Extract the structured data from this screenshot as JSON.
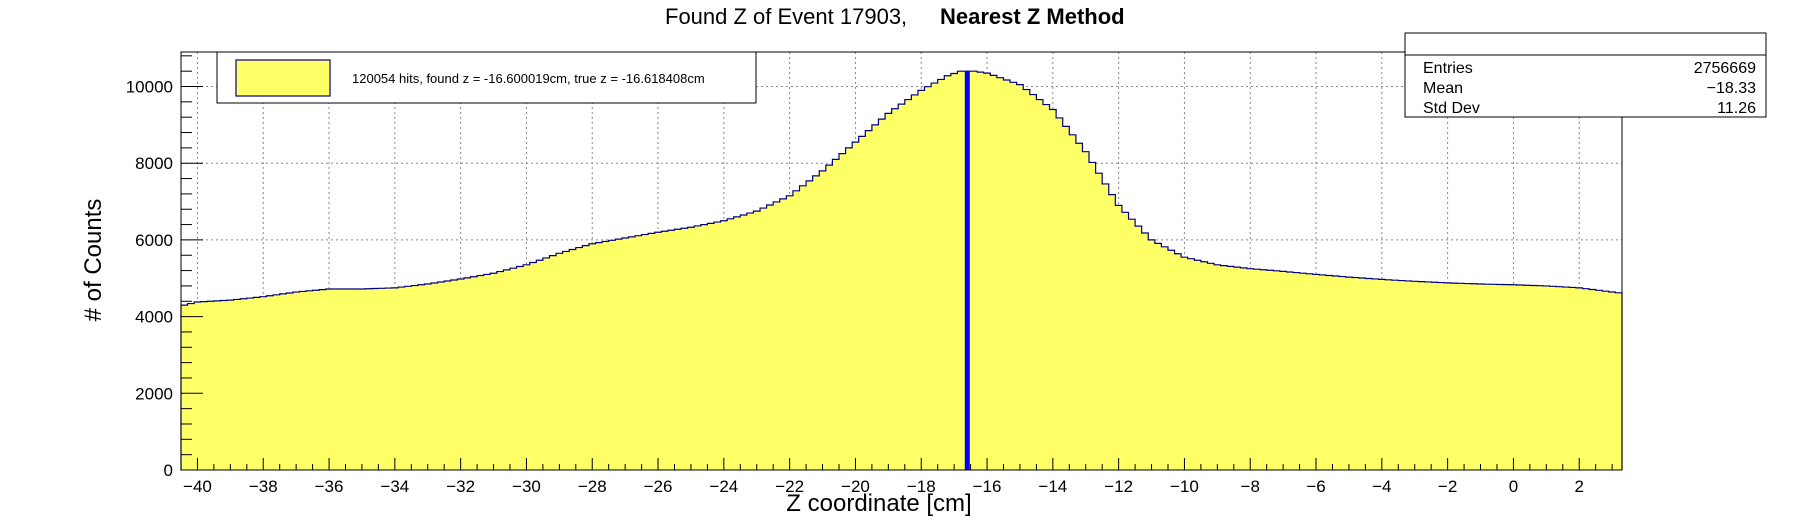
{
  "chart_data": {
    "type": "histogram",
    "title": "Found Z of Event 17903,",
    "title_bold": "Nearest Z Method",
    "xlabel": "Z coordinate [cm]",
    "ylabel": "# of Counts",
    "xlim": [
      -40.5,
      3.3
    ],
    "ylim": [
      0,
      10900
    ],
    "x_ticks": [
      -40,
      -38,
      -36,
      -34,
      -32,
      -30,
      -28,
      -26,
      -24,
      -22,
      -20,
      -18,
      -16,
      -14,
      -12,
      -10,
      -8,
      -6,
      -4,
      -2,
      0,
      2
    ],
    "x_tick_labels": [
      "−40",
      "−38",
      "−36",
      "−34",
      "−32",
      "−30",
      "−28",
      "−26",
      "−24",
      "−22",
      "−20",
      "−18",
      "−16",
      "−14",
      "−12",
      "−10",
      "−8",
      "−6",
      "−4",
      "−2",
      "0",
      "2"
    ],
    "y_ticks": [
      0,
      2000,
      4000,
      6000,
      8000,
      10000
    ],
    "y_tick_labels": [
      "0",
      "2000",
      "4000",
      "6000",
      "8000",
      "10000"
    ],
    "grid": true,
    "bin_width": 0.2,
    "profile_x": [
      -40.4,
      -40,
      -39,
      -38,
      -37,
      -36,
      -35,
      -34,
      -33,
      -32,
      -31,
      -30,
      -29,
      -28,
      -27,
      -26,
      -25,
      -24,
      -23,
      -22,
      -21,
      -20,
      -19,
      -18,
      -17.2,
      -16.8,
      -16.4,
      -16,
      -15,
      -14,
      -13,
      -12,
      -11,
      -10,
      -9,
      -8,
      -7,
      -6,
      -5,
      -4,
      -3,
      -2,
      -1,
      0,
      1,
      2,
      3.2
    ],
    "profile_y": [
      4300,
      4380,
      4430,
      4520,
      4640,
      4720,
      4720,
      4750,
      4850,
      4980,
      5130,
      5350,
      5650,
      5900,
      6050,
      6200,
      6330,
      6500,
      6750,
      7150,
      7800,
      8550,
      9300,
      9900,
      10280,
      10400,
      10400,
      10350,
      10050,
      9400,
      8300,
      6900,
      6000,
      5550,
      5350,
      5250,
      5180,
      5100,
      5030,
      4970,
      4920,
      4880,
      4850,
      4830,
      4800,
      4750,
      4620
    ],
    "series": [
      {
        "name": "120054 hits, found z = -16.600019cm, true z = -16.618408cm",
        "fill_color": "#ffff66",
        "line_color": "#000080"
      }
    ],
    "annotations": [
      {
        "type": "vertical-line",
        "x": -16.6,
        "color": "#0000ff"
      }
    ],
    "legend_position": "top-left"
  },
  "stats": {
    "rows": [
      {
        "label": "Entries",
        "value": "2756669"
      },
      {
        "label": "Mean",
        "value": "−18.33"
      },
      {
        "label": "Std Dev",
        "value": "11.26"
      }
    ]
  }
}
